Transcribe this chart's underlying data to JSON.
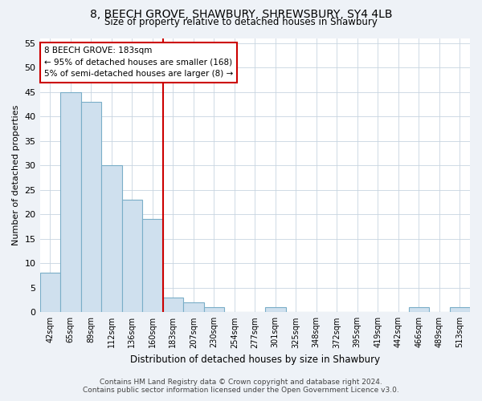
{
  "title": "8, BEECH GROVE, SHAWBURY, SHREWSBURY, SY4 4LB",
  "subtitle": "Size of property relative to detached houses in Shawbury",
  "xlabel": "Distribution of detached houses by size in Shawbury",
  "ylabel": "Number of detached properties",
  "categories": [
    "42sqm",
    "65sqm",
    "89sqm",
    "112sqm",
    "136sqm",
    "160sqm",
    "183sqm",
    "207sqm",
    "230sqm",
    "254sqm",
    "277sqm",
    "301sqm",
    "325sqm",
    "348sqm",
    "372sqm",
    "395sqm",
    "419sqm",
    "442sqm",
    "466sqm",
    "489sqm",
    "513sqm"
  ],
  "values": [
    8,
    45,
    43,
    30,
    23,
    19,
    3,
    2,
    1,
    0,
    0,
    1,
    0,
    0,
    0,
    0,
    0,
    0,
    1,
    0,
    1
  ],
  "bar_color": "#cfe0ee",
  "bar_edge_color": "#7aaec8",
  "highlight_color": "#cc0000",
  "annotation_text": "8 BEECH GROVE: 183sqm\n← 95% of detached houses are smaller (168)\n5% of semi-detached houses are larger (8) →",
  "ylim_max": 56,
  "yticks": [
    0,
    5,
    10,
    15,
    20,
    25,
    30,
    35,
    40,
    45,
    50,
    55
  ],
  "footer_line1": "Contains HM Land Registry data © Crown copyright and database right 2024.",
  "footer_line2": "Contains public sector information licensed under the Open Government Licence v3.0.",
  "bg_color": "#eef2f7",
  "plot_bg_color": "#ffffff",
  "grid_color": "#c8d4e0"
}
